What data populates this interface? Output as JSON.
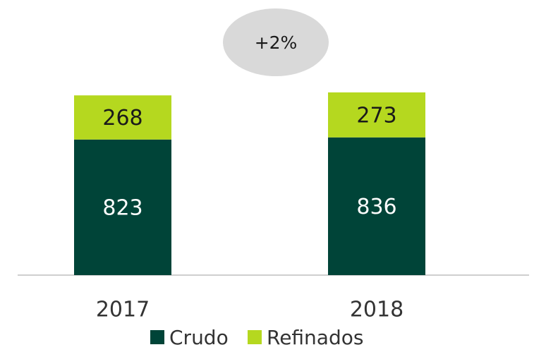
{
  "chart_data": {
    "type": "stacked_bar",
    "annotation": "+2%",
    "categories": [
      "2017",
      "2018"
    ],
    "series": [
      {
        "name": "Crudo",
        "color": "#004438",
        "label_color": "#ffffff",
        "values": [
          823,
          836
        ]
      },
      {
        "name": "Refinados",
        "color": "#b5d81f",
        "label_color": "#1a1a1a",
        "values": [
          268,
          273
        ]
      }
    ],
    "legend": "bottom"
  }
}
